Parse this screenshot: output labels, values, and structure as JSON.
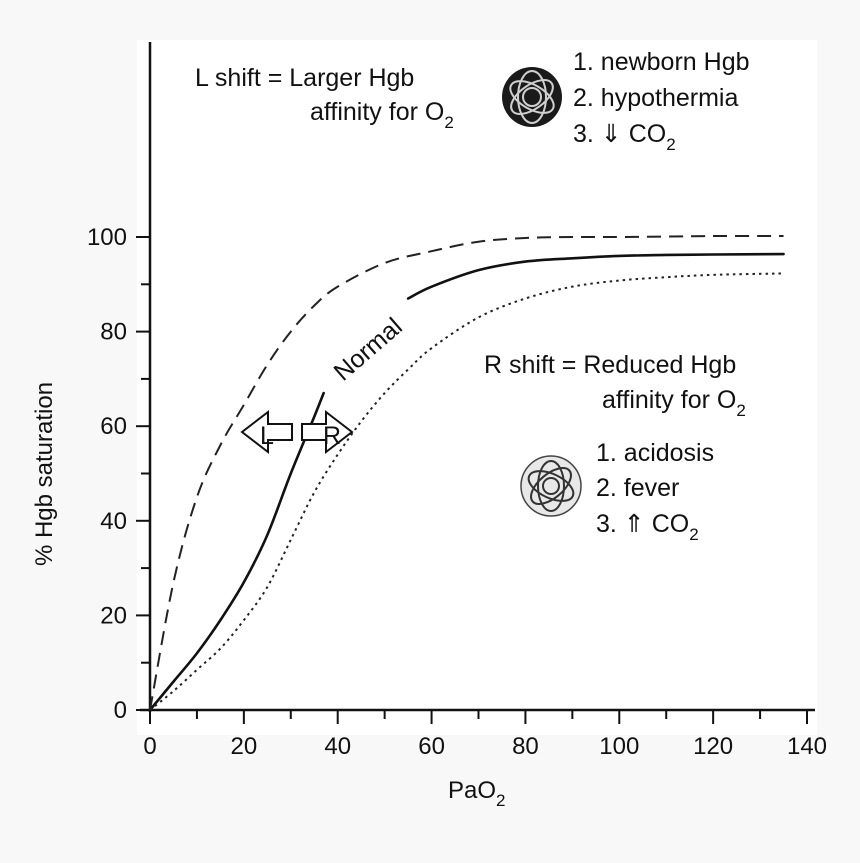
{
  "chart_data": {
    "type": "line",
    "xlabel": "PaO",
    "xlabel_sub": "2",
    "ylabel": "% Hgb saturation",
    "xlim": [
      0,
      140
    ],
    "ylim": [
      0,
      100
    ],
    "x_ticks": [
      "0",
      "20",
      "40",
      "60",
      "80",
      "100",
      "120",
      "140"
    ],
    "y_ticks": [
      "0",
      "20",
      "40",
      "60",
      "80",
      "100"
    ],
    "grid": false,
    "series": [
      {
        "name": "Normal",
        "style": "solid",
        "x": [
          0,
          5,
          10,
          15,
          20,
          25,
          30,
          35,
          37,
          55,
          60,
          70,
          80,
          90,
          100,
          110,
          120,
          135
        ],
        "y": [
          0,
          6,
          12,
          19,
          27,
          37,
          50,
          62,
          67,
          87,
          89.5,
          93,
          94.8,
          95.5,
          96,
          96.2,
          96.3,
          96.4
        ]
      },
      {
        "name": "L shift",
        "style": "dashed",
        "x": [
          0,
          5,
          10,
          15,
          20,
          25,
          30,
          35,
          40,
          50,
          60,
          70,
          80,
          90,
          100,
          120,
          135
        ],
        "y": [
          0,
          27,
          45,
          56,
          64.5,
          73,
          80,
          85.5,
          89.5,
          94.5,
          97,
          99,
          99.8,
          100,
          100,
          100.2,
          100.2
        ]
      },
      {
        "name": "R shift",
        "style": "dotted",
        "x": [
          0,
          5,
          10,
          15,
          20,
          25,
          30,
          35,
          40,
          45,
          50,
          55,
          60,
          70,
          80,
          90,
          100,
          110,
          120,
          135
        ],
        "y": [
          0,
          4,
          8.5,
          13,
          19,
          26,
          36,
          46,
          54,
          61,
          67,
          72,
          76.5,
          83,
          87,
          89.5,
          90.8,
          91.5,
          92,
          92.3
        ]
      }
    ],
    "curve_label": "Normal",
    "arrow_left_label": "L",
    "arrow_right_label": "R",
    "annotations": {
      "left_shift": {
        "line1": "L shift = Larger Hgb",
        "line2": "affinity for O",
        "line2_sub": "2",
        "items": [
          {
            "text": "1. newborn Hgb",
            "sub": ""
          },
          {
            "text": "2. hypothermia",
            "sub": ""
          },
          {
            "text": "3. ⇓ CO",
            "sub": "2"
          }
        ]
      },
      "right_shift": {
        "line1": "R shift = Reduced Hgb",
        "line2": "affinity for O",
        "line2_sub": "2",
        "items": [
          {
            "text": "1. acidosis",
            "sub": ""
          },
          {
            "text": "2. fever",
            "sub": ""
          },
          {
            "text": "3. ⇑ CO",
            "sub": "2"
          }
        ]
      }
    }
  }
}
